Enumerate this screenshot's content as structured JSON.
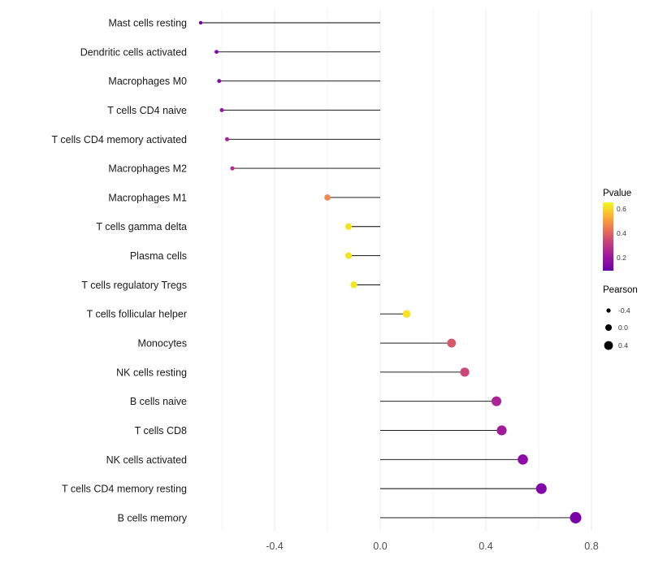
{
  "chart_data": {
    "type": "lollipop",
    "title": "",
    "xlabel": "",
    "ylabel": "",
    "x_ticks": [
      -0.4,
      0.0,
      0.4,
      0.8
    ],
    "x_minor_ticks": [
      -0.6,
      -0.2,
      0.2,
      0.6
    ],
    "xlim": [
      -0.75,
      0.88
    ],
    "points": [
      {
        "label": "Mast cells resting",
        "pearson": -0.68,
        "color": "#6f02a8"
      },
      {
        "label": "Dendritic cells activated",
        "pearson": -0.62,
        "color": "#8405a7"
      },
      {
        "label": "Macrophages M0",
        "pearson": -0.61,
        "color": "#8a09a5"
      },
      {
        "label": "T cells CD4 naive",
        "pearson": -0.6,
        "color": "#9512a0"
      },
      {
        "label": "T cells CD4 memory activated",
        "pearson": -0.58,
        "color": "#a62098"
      },
      {
        "label": "Macrophages M2",
        "pearson": -0.56,
        "color": "#b42e8d"
      },
      {
        "label": "Macrophages M1",
        "pearson": -0.2,
        "color": "#f2884b"
      },
      {
        "label": "T cells gamma delta",
        "pearson": -0.12,
        "color": "#f0e51c"
      },
      {
        "label": "Plasma cells",
        "pearson": -0.12,
        "color": "#f1e51c"
      },
      {
        "label": "T cells regulatory Tregs",
        "pearson": -0.1,
        "color": "#f4e61f"
      },
      {
        "label": "T cells follicular helper",
        "pearson": 0.1,
        "color": "#f7e225"
      },
      {
        "label": "Monocytes",
        "pearson": 0.27,
        "color": "#d75a6a"
      },
      {
        "label": "NK cells resting",
        "pearson": 0.32,
        "color": "#cc4778"
      },
      {
        "label": "B cells naive",
        "pearson": 0.44,
        "color": "#aa2295"
      },
      {
        "label": "T cells CD8",
        "pearson": 0.46,
        "color": "#a01a9c"
      },
      {
        "label": "NK cells activated",
        "pearson": 0.54,
        "color": "#8e0ba5"
      },
      {
        "label": "T cells CD4 memory resting",
        "pearson": 0.61,
        "color": "#8305a7"
      },
      {
        "label": "B cells memory",
        "pearson": 0.74,
        "color": "#7b02a8"
      }
    ],
    "legend": {
      "pvalue": {
        "title": "Pvalue",
        "gradient_stops": [
          "#f0f921",
          "#fdb32f",
          "#e97257",
          "#c33d80",
          "#9c179e",
          "#6a00a8"
        ],
        "tick_labels": [
          "0.6",
          "0.4",
          "0.2"
        ]
      },
      "pearson": {
        "title": "Pearson",
        "sizes": [
          {
            "label": "-0.4",
            "r": 2.6
          },
          {
            "label": "0.0",
            "r": 4.0
          },
          {
            "label": "0.4",
            "r": 5.4
          }
        ]
      }
    }
  }
}
